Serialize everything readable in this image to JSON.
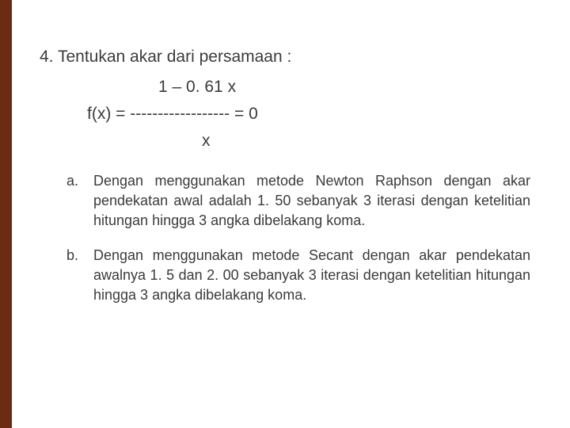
{
  "accent_color": "#6b2c13",
  "problem": {
    "number": "4.",
    "statement": "Tentukan akar dari persamaan :",
    "equation_numerator": "1 – 0. 61 x",
    "equation_line": "f(x) = ------------------ = 0",
    "equation_denominator": "x"
  },
  "items": [
    {
      "label": "a.",
      "text": "Dengan menggunakan metode Newton Raphson dengan akar pendekatan awal adalah 1. 50 sebanyak 3 iterasi dengan ketelitian hitungan hingga 3 angka dibelakang koma."
    },
    {
      "label": "b.",
      "text": "Dengan menggunakan metode Secant dengan akar pendekatan awalnya 1. 5 dan 2. 00 sebanyak 3 iterasi dengan ketelitian hitungan hingga 3 angka dibelakang koma."
    }
  ]
}
